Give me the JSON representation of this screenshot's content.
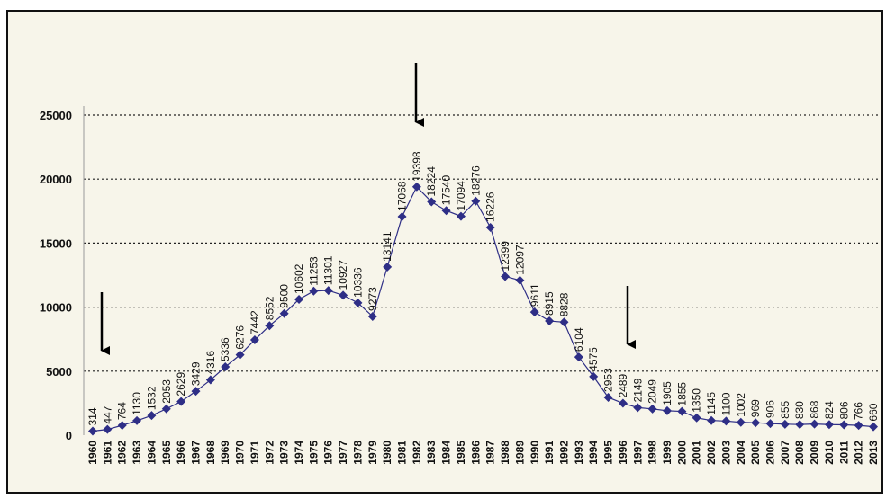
{
  "chart_data": {
    "type": "line",
    "categories": [
      "1960",
      "1961",
      "1962",
      "1963",
      "1964",
      "1965",
      "1966",
      "1967",
      "1968",
      "1969",
      "1970",
      "1971",
      "1972",
      "1973",
      "1974",
      "1975",
      "1976",
      "1977",
      "1978",
      "1979",
      "1980",
      "1981",
      "1982",
      "1983",
      "1984",
      "1985",
      "1986",
      "1987",
      "1988",
      "1989",
      "1990",
      "1991",
      "1992",
      "1993",
      "1994",
      "1995",
      "1996",
      "1997",
      "1998",
      "1999",
      "2000",
      "2001",
      "2002",
      "2003",
      "2004",
      "2005",
      "2006",
      "2007",
      "2008",
      "2009",
      "2010",
      "2011",
      "2012",
      "2013"
    ],
    "values": [
      314,
      447,
      764,
      1130,
      1532,
      2053,
      2629,
      3429,
      4316,
      5336,
      6276,
      7442,
      8552,
      9500,
      10602,
      11253,
      11301,
      10927,
      10336,
      9273,
      13141,
      17068,
      19398,
      18224,
      17540,
      17094,
      18276,
      16226,
      12399,
      12097,
      9611,
      8915,
      8828,
      6104,
      4575,
      2953,
      2489,
      2149,
      2049,
      1905,
      1855,
      1350,
      1145,
      1100,
      1002,
      969,
      906,
      855,
      830,
      868,
      824,
      806,
      766,
      660
    ],
    "color": "#2e2e86",
    "ylim": [
      0,
      25000
    ],
    "yticks": [
      0,
      5000,
      10000,
      15000,
      20000,
      25000
    ],
    "grid": true
  }
}
